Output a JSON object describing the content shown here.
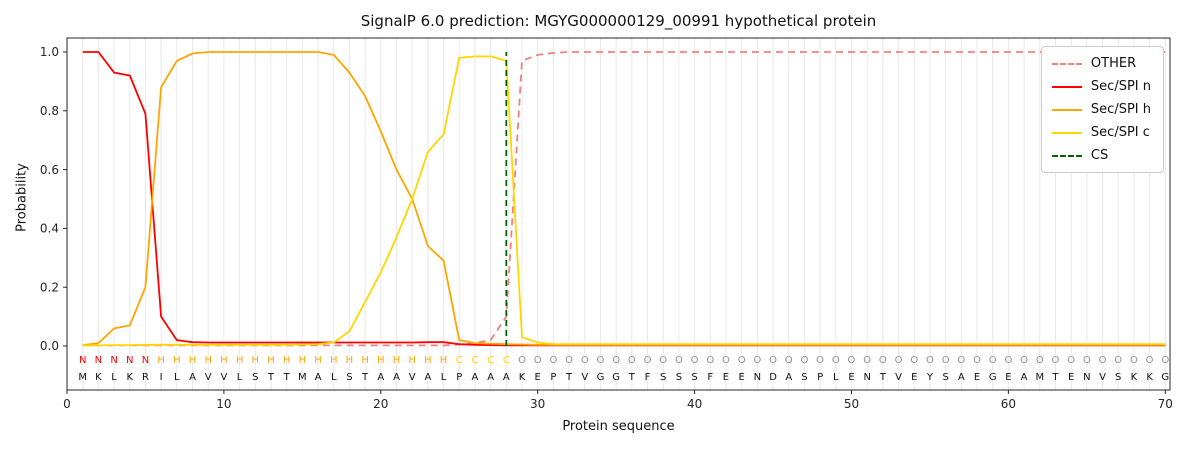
{
  "legend": {
    "position": "upper right",
    "items": [
      {
        "label": "OTHER",
        "color": "#f08080",
        "dash": true
      },
      {
        "label": "Sec/SPI n",
        "color": "#ff0000",
        "dash": false
      },
      {
        "label": "Sec/SPI h",
        "color": "#ffa500",
        "dash": false
      },
      {
        "label": "Sec/SPI c",
        "color": "#ffd700",
        "dash": false
      },
      {
        "label": "CS",
        "color": "#006400",
        "dash": true
      }
    ]
  },
  "colors": {
    "grid": "#e8e8e8",
    "axis": "#262626",
    "background": "#ffffff",
    "sequence_text": "#111111"
  },
  "chart_data": {
    "type": "line",
    "title": "SignalP 6.0 prediction: MGYG000000129_00991 hypothetical protein",
    "xlabel": "Protein sequence",
    "ylabel": "Probability",
    "x_min": 1,
    "x_max": 70,
    "xlim": [
      0,
      70.3
    ],
    "ylim": [
      0,
      1
    ],
    "x_ticks": [
      0,
      10,
      20,
      30,
      40,
      50,
      60,
      70
    ],
    "y_ticks": [
      "0.0",
      "0.2",
      "0.4",
      "0.6",
      "0.8",
      "1.0"
    ],
    "grid": "vertical-per-residue",
    "cs_position": 28,
    "sequence": "MKLKRILAVVLSTTMALSTAAVALPAAAKEPTVGGTFSSSFEENDASPLENTVEYSAEGEAMTENVSKKG",
    "state_labels": "NNNNNHHHHHHHHHHHHHHHHHHHCCCCOOOOOOOOOOOOOOOOOOOOOOOOOOOOOOOOOOOOOOOOOO",
    "state_colors": {
      "N": "#ff0000",
      "H": "#ffa500",
      "C": "#ffd700",
      "O": "#909090"
    },
    "series": [
      {
        "name": "OTHER",
        "color": "#f08080",
        "dash": true,
        "values": [
          0.002,
          0.002,
          0.002,
          0.002,
          0.002,
          0.002,
          0.002,
          0.002,
          0.002,
          0.002,
          0.002,
          0.002,
          0.002,
          0.002,
          0.002,
          0.002,
          0.002,
          0.002,
          0.002,
          0.002,
          0.002,
          0.002,
          0.002,
          0.002,
          0.005,
          0.01,
          0.02,
          0.1,
          0.97,
          0.99,
          0.997,
          1.0,
          1.0,
          1.0,
          1.0,
          1.0,
          1.0,
          1.0,
          1.0,
          1.0,
          1.0,
          1.0,
          1.0,
          1.0,
          1.0,
          1.0,
          1.0,
          1.0,
          1.0,
          1.0,
          1.0,
          1.0,
          1.0,
          1.0,
          1.0,
          1.0,
          1.0,
          1.0,
          1.0,
          1.0,
          1.0,
          1.0,
          1.0,
          1.0,
          1.0,
          1.0,
          1.0,
          1.0,
          1.0,
          1.0
        ]
      },
      {
        "name": "Sec/SPI n",
        "color": "#ff0000",
        "dash": false,
        "values": [
          1.0,
          1.0,
          0.93,
          0.92,
          0.79,
          0.1,
          0.02,
          0.013,
          0.012,
          0.012,
          0.012,
          0.012,
          0.012,
          0.012,
          0.012,
          0.012,
          0.012,
          0.012,
          0.012,
          0.012,
          0.012,
          0.012,
          0.013,
          0.013,
          0.006,
          0.004,
          0.003,
          0.002,
          0.002,
          0.002,
          0.002,
          0.002,
          0.002,
          0.002,
          0.002,
          0.002,
          0.002,
          0.002,
          0.002,
          0.002,
          0.002,
          0.002,
          0.002,
          0.002,
          0.002,
          0.002,
          0.002,
          0.002,
          0.002,
          0.002,
          0.002,
          0.002,
          0.002,
          0.002,
          0.002,
          0.002,
          0.002,
          0.002,
          0.002,
          0.002,
          0.002,
          0.002,
          0.002,
          0.002,
          0.002,
          0.002,
          0.002,
          0.002,
          0.002,
          0.002
        ]
      },
      {
        "name": "Sec/SPI h",
        "color": "#ffa500",
        "dash": false,
        "values": [
          0.003,
          0.01,
          0.06,
          0.07,
          0.2,
          0.88,
          0.97,
          0.995,
          1.0,
          1.0,
          1.0,
          1.0,
          1.0,
          1.0,
          1.0,
          1.0,
          0.99,
          0.93,
          0.85,
          0.73,
          0.6,
          0.5,
          0.34,
          0.29,
          0.02,
          0.01,
          0.008,
          0.006,
          0.005,
          0.004,
          0.004,
          0.004,
          0.004,
          0.004,
          0.004,
          0.004,
          0.004,
          0.004,
          0.004,
          0.004,
          0.004,
          0.004,
          0.004,
          0.004,
          0.004,
          0.004,
          0.004,
          0.004,
          0.004,
          0.004,
          0.004,
          0.004,
          0.004,
          0.004,
          0.004,
          0.004,
          0.004,
          0.004,
          0.004,
          0.004,
          0.004,
          0.004,
          0.004,
          0.004,
          0.004,
          0.004,
          0.004,
          0.004,
          0.004,
          0.004
        ]
      },
      {
        "name": "Sec/SPI c",
        "color": "#ffd700",
        "dash": false,
        "values": [
          0.002,
          0.002,
          0.003,
          0.003,
          0.004,
          0.004,
          0.004,
          0.004,
          0.004,
          0.004,
          0.004,
          0.004,
          0.004,
          0.004,
          0.005,
          0.006,
          0.012,
          0.05,
          0.15,
          0.25,
          0.37,
          0.5,
          0.66,
          0.72,
          0.98,
          0.985,
          0.985,
          0.97,
          0.03,
          0.012,
          0.006,
          0.006,
          0.006,
          0.006,
          0.006,
          0.006,
          0.006,
          0.006,
          0.006,
          0.006,
          0.006,
          0.006,
          0.006,
          0.006,
          0.006,
          0.006,
          0.006,
          0.006,
          0.006,
          0.006,
          0.006,
          0.006,
          0.006,
          0.006,
          0.006,
          0.006,
          0.006,
          0.006,
          0.006,
          0.006,
          0.006,
          0.006,
          0.006,
          0.006,
          0.006,
          0.006,
          0.006,
          0.006,
          0.006,
          0.006
        ]
      }
    ]
  }
}
